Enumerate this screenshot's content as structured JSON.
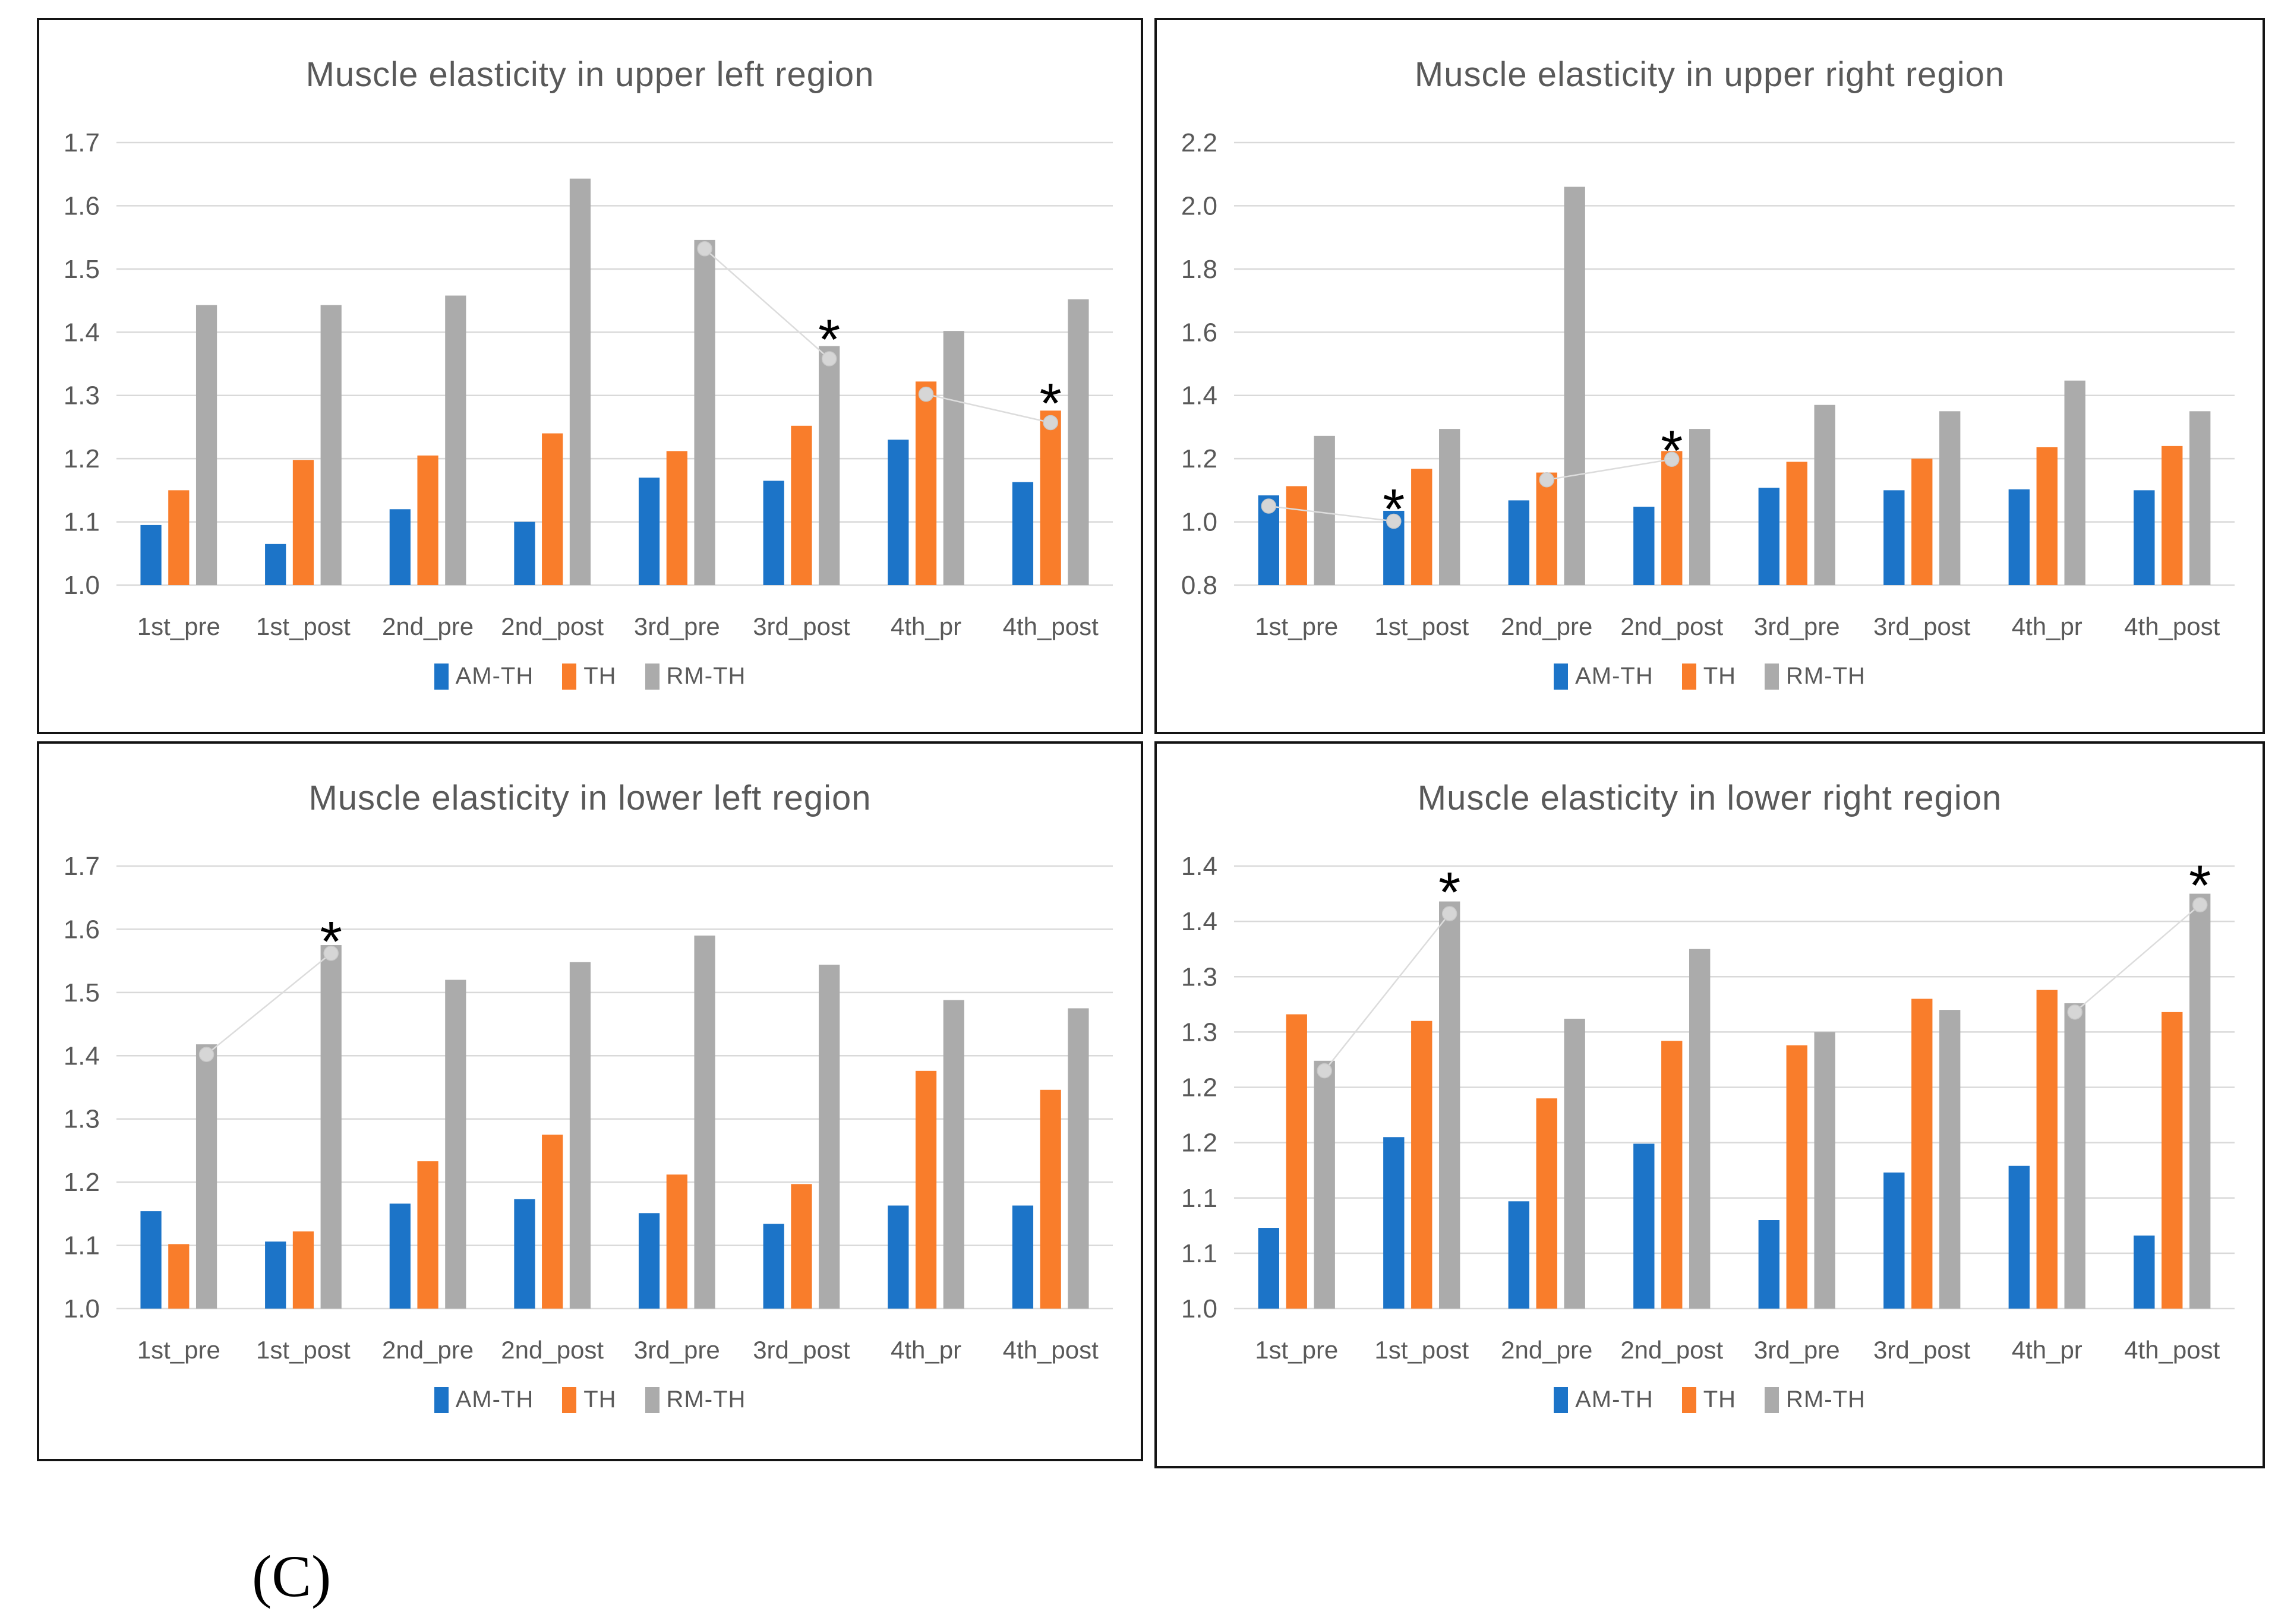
{
  "caption": "(C)",
  "colors": {
    "am_th": "#1C74C8",
    "th": "#F97D2B",
    "rm_th": "#ABABAB",
    "grid": "#D9D9D9",
    "axis_text": "#595959",
    "connector_line": "#DCDCDC",
    "marker_fill": "#D6D6D6",
    "marker_edge": "#C9C9C9",
    "star": "#000000"
  },
  "chart_data": [
    {
      "type": "bar",
      "title": "Muscle elasticity in upper left region",
      "categories": [
        "1st_pre",
        "1st_post",
        "2nd_pre",
        "2nd_post",
        "3rd_pre",
        "3rd_post",
        "4th_pr",
        "4th_post"
      ],
      "series": [
        {
          "name": "AM-TH",
          "color": "am_th",
          "values": [
            1.095,
            1.065,
            1.12,
            1.1,
            1.17,
            1.165,
            1.23,
            1.163
          ]
        },
        {
          "name": "TH",
          "color": "th",
          "values": [
            1.15,
            1.198,
            1.205,
            1.24,
            1.212,
            1.252,
            1.322,
            1.276
          ]
        },
        {
          "name": "RM-TH",
          "color": "rm_th",
          "values": [
            1.443,
            1.443,
            1.458,
            1.643,
            1.546,
            1.378,
            1.402,
            1.452
          ]
        }
      ],
      "ylim": [
        1.0,
        1.7
      ],
      "ystep": 0.1,
      "ytick_labels": [
        "1.0",
        "1.1",
        "1.2",
        "1.3",
        "1.4",
        "1.5",
        "1.6",
        "1.7"
      ],
      "grid": true,
      "legend_position": "bottom",
      "annotations": {
        "lines": [
          [
            {
              "cat": 4,
              "series": 2,
              "v": 1.532
            },
            {
              "cat": 5,
              "series": 2,
              "v": 1.358
            }
          ],
          [
            {
              "cat": 6,
              "series": 1,
              "v": 1.302
            },
            {
              "cat": 7,
              "series": 1,
              "v": 1.257
            }
          ]
        ],
        "stars": [
          {
            "cat": 5,
            "series": 2,
            "v": 1.416
          },
          {
            "cat": 7,
            "series": 1,
            "v": 1.315
          }
        ]
      }
    },
    {
      "type": "bar",
      "title": "Muscle elasticity in upper right region",
      "categories": [
        "1st_pre",
        "1st_post",
        "2nd_pre",
        "2nd_post",
        "3rd_pre",
        "3rd_post",
        "4th_pr",
        "4th_post"
      ],
      "series": [
        {
          "name": "AM-TH",
          "color": "am_th",
          "values": [
            1.084,
            1.035,
            1.068,
            1.048,
            1.108,
            1.1,
            1.103,
            1.1
          ]
        },
        {
          "name": "TH",
          "color": "th",
          "values": [
            1.113,
            1.168,
            1.156,
            1.224,
            1.19,
            1.2,
            1.236,
            1.24
          ]
        },
        {
          "name": "RM-TH",
          "color": "rm_th",
          "values": [
            1.272,
            1.294,
            2.06,
            1.294,
            1.37,
            1.35,
            1.447,
            1.35
          ]
        }
      ],
      "ylim": [
        0.8,
        2.2
      ],
      "ystep": 0.2,
      "ytick_labels": [
        "0.8",
        "1.0",
        "1.2",
        "1.4",
        "1.6",
        "1.8",
        "2.0",
        "2.2"
      ],
      "grid": true,
      "legend_position": "bottom",
      "annotations": {
        "lines": [
          [
            {
              "cat": 0,
              "series": 0,
              "v": 1.05
            },
            {
              "cat": 1,
              "series": 0,
              "v": 1.002
            }
          ],
          [
            {
              "cat": 2,
              "series": 1,
              "v": 1.133
            },
            {
              "cat": 3,
              "series": 1,
              "v": 1.198
            }
          ]
        ],
        "stars": [
          {
            "cat": 1,
            "series": 0,
            "v": 1.095
          },
          {
            "cat": 3,
            "series": 1,
            "v": 1.28
          }
        ]
      }
    },
    {
      "type": "bar",
      "title": "Muscle elasticity in lower left region",
      "categories": [
        "1st_pre",
        "1st_post",
        "2nd_pre",
        "2nd_post",
        "3rd_pre",
        "3rd_post",
        "4th_pr",
        "4th_post"
      ],
      "series": [
        {
          "name": "AM-TH",
          "color": "am_th",
          "values": [
            1.154,
            1.106,
            1.166,
            1.173,
            1.151,
            1.134,
            1.163,
            1.163
          ]
        },
        {
          "name": "TH",
          "color": "th",
          "values": [
            1.102,
            1.122,
            1.233,
            1.275,
            1.212,
            1.197,
            1.376,
            1.346
          ]
        },
        {
          "name": "RM-TH",
          "color": "rm_th",
          "values": [
            1.418,
            1.575,
            1.52,
            1.548,
            1.59,
            1.544,
            1.488,
            1.475
          ]
        }
      ],
      "ylim": [
        1.0,
        1.7
      ],
      "ystep": 0.1,
      "ytick_labels": [
        "1.0",
        "1.1",
        "1.2",
        "1.3",
        "1.4",
        "1.5",
        "1.6",
        "1.7"
      ],
      "grid": true,
      "legend_position": "bottom",
      "annotations": {
        "lines": [
          [
            {
              "cat": 0,
              "series": 2,
              "v": 1.402
            },
            {
              "cat": 1,
              "series": 2,
              "v": 1.562
            }
          ]
        ],
        "stars": [
          {
            "cat": 1,
            "series": 2,
            "v": 1.608
          }
        ]
      }
    },
    {
      "type": "bar",
      "title": "Muscle elasticity in lower right region",
      "categories": [
        "1st_pre",
        "1st_post",
        "2nd_pre",
        "2nd_post",
        "3rd_pre",
        "3rd_post",
        "4th_pr",
        "4th_post"
      ],
      "series": [
        {
          "name": "AM-TH",
          "color": "am_th",
          "values": [
            1.073,
            1.155,
            1.097,
            1.149,
            1.08,
            1.123,
            1.129,
            1.066
          ]
        },
        {
          "name": "TH",
          "color": "th",
          "values": [
            1.266,
            1.26,
            1.19,
            1.242,
            1.238,
            1.28,
            1.288,
            1.268
          ]
        },
        {
          "name": "RM-TH",
          "color": "rm_th",
          "values": [
            1.224,
            1.368,
            1.262,
            1.325,
            1.25,
            1.27,
            1.276,
            1.375
          ]
        }
      ],
      "ylim": [
        1.0,
        1.4
      ],
      "ystep": 0.05,
      "ytick_labels": [
        "1.0",
        "1.1",
        "1.1",
        "1.2",
        "1.2",
        "1.3",
        "1.3",
        "1.4",
        "1.4"
      ],
      "grid": true,
      "legend_position": "bottom",
      "annotations": {
        "lines": [
          [
            {
              "cat": 0,
              "series": 2,
              "v": 1.215
            },
            {
              "cat": 1,
              "series": 2,
              "v": 1.357
            }
          ],
          [
            {
              "cat": 6,
              "series": 2,
              "v": 1.268
            },
            {
              "cat": 7,
              "series": 2,
              "v": 1.365
            }
          ]
        ],
        "stars": [
          {
            "cat": 1,
            "series": 2,
            "v": 1.392
          },
          {
            "cat": 7,
            "series": 2,
            "v": 1.398
          }
        ]
      }
    }
  ]
}
